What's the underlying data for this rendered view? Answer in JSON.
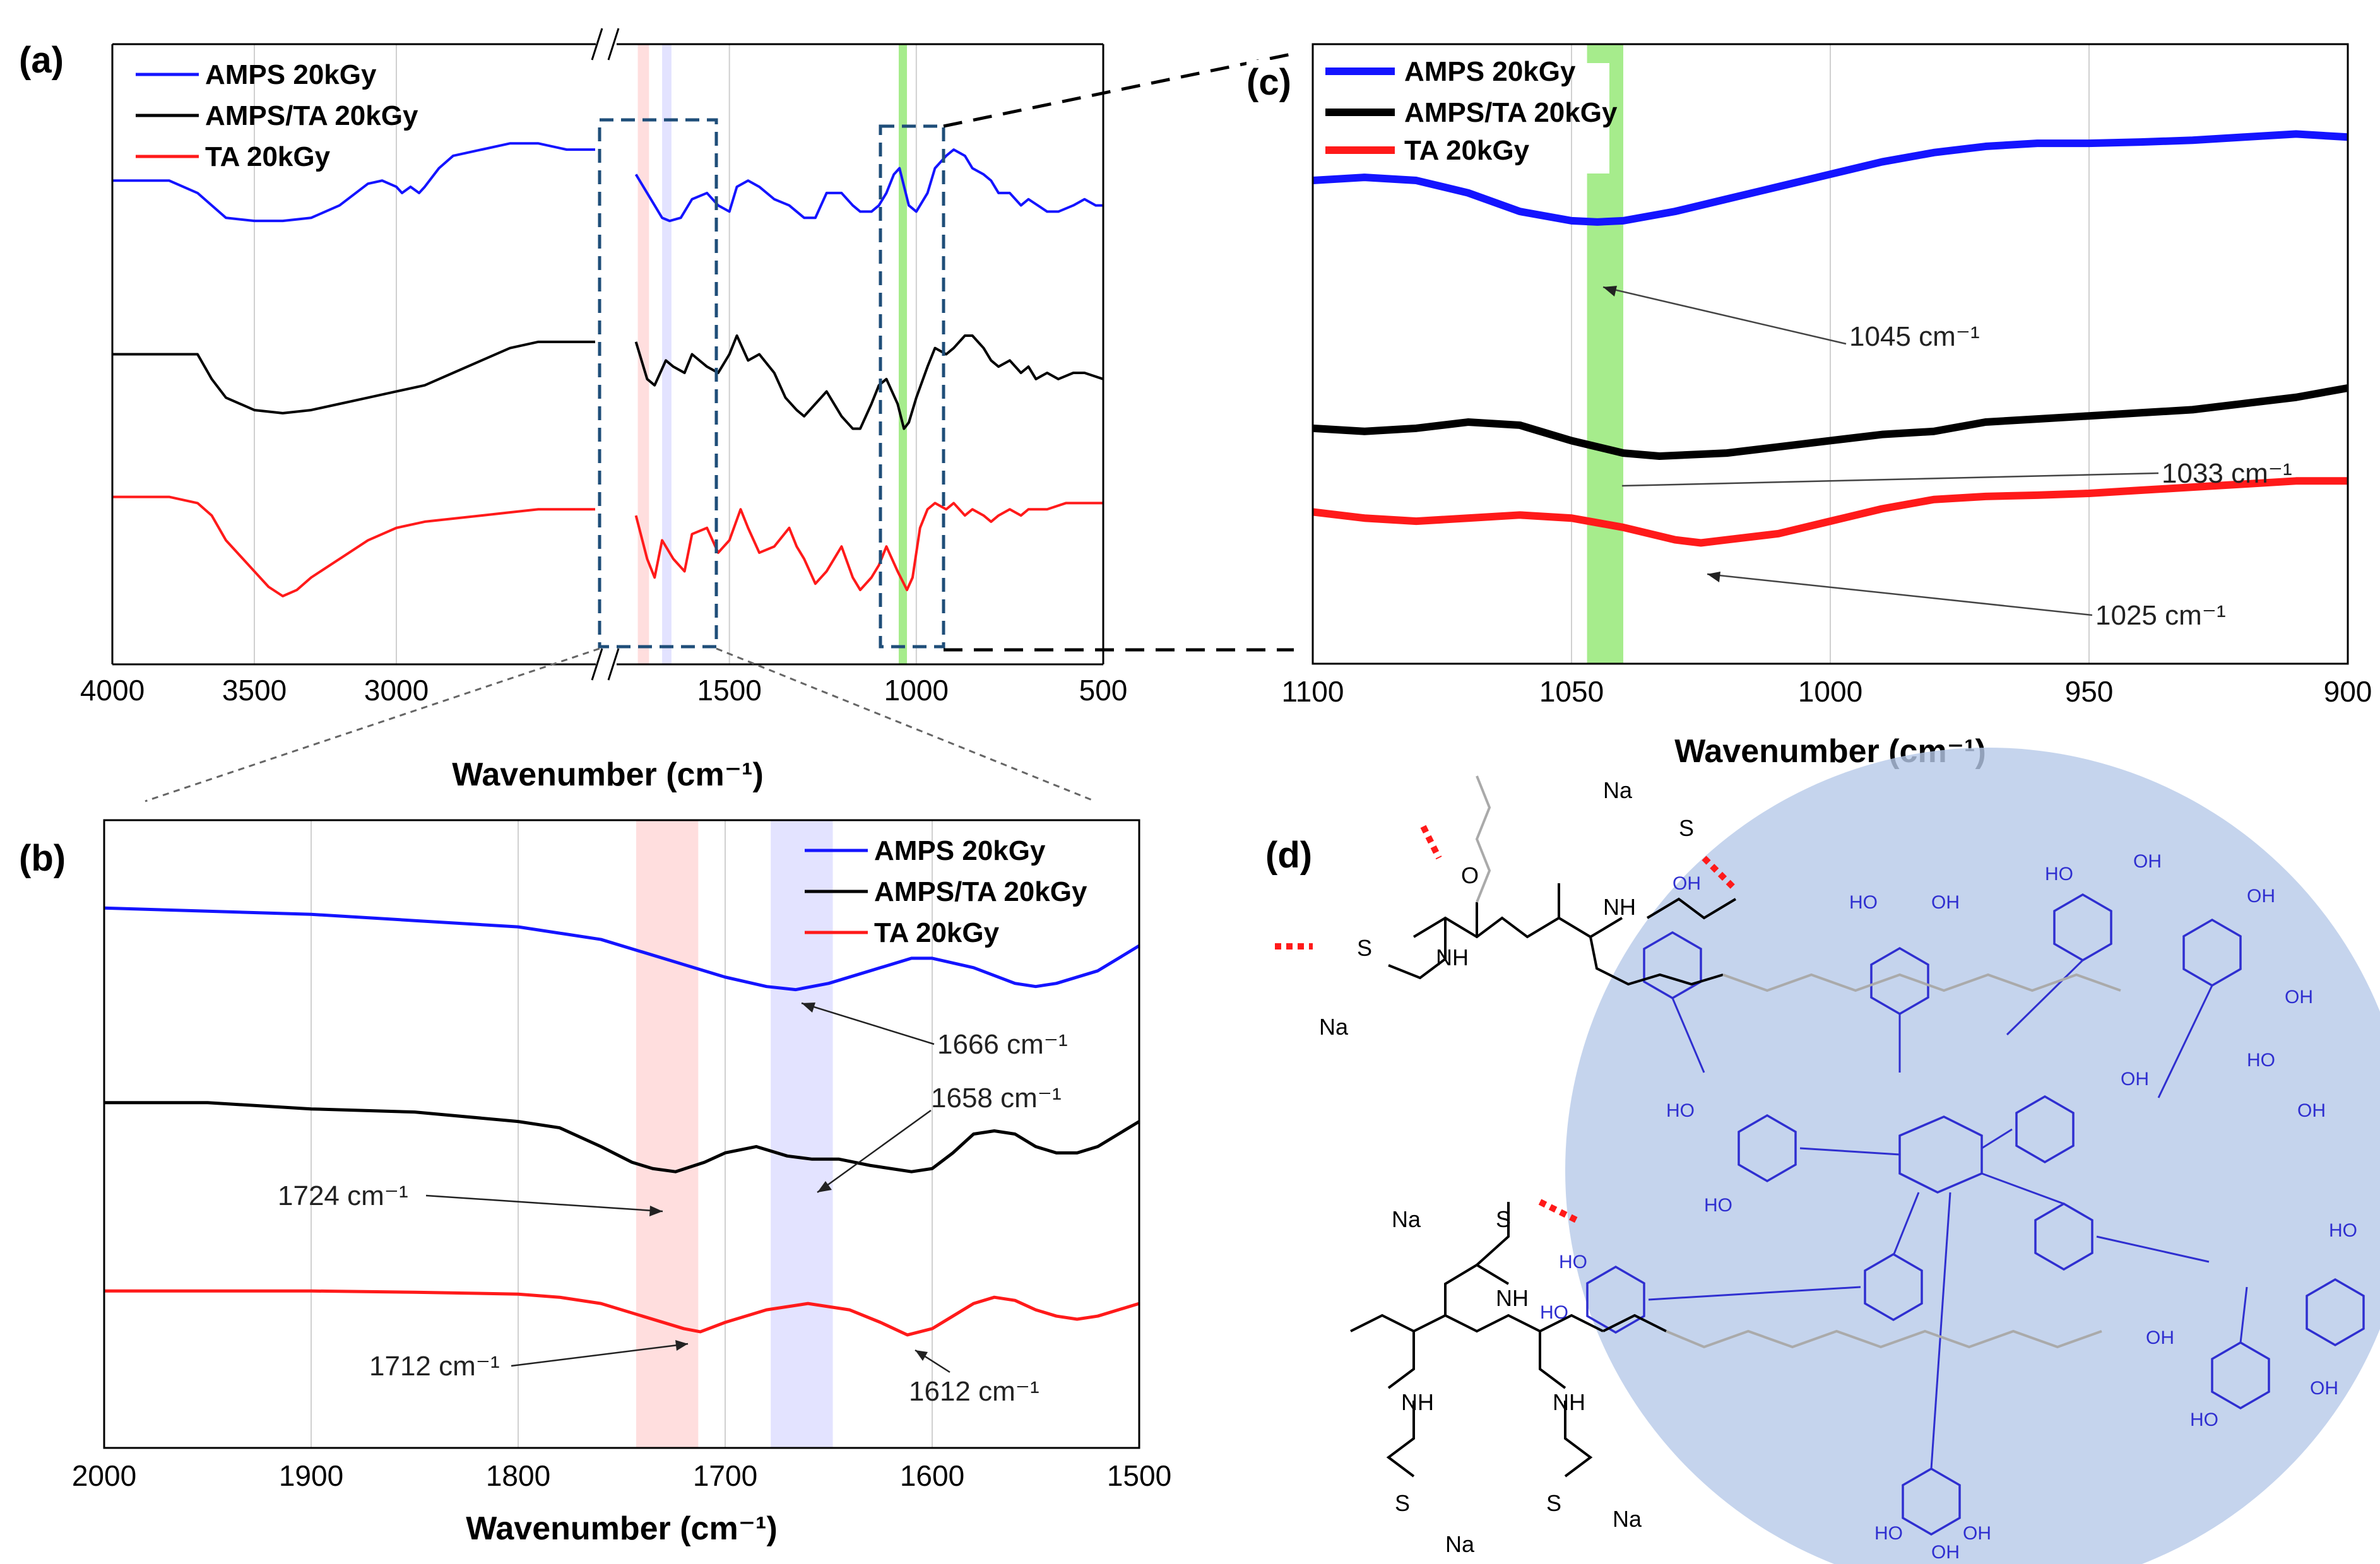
{
  "colors": {
    "amps": "#1414ff",
    "amps_ta": "#000000",
    "ta": "#ff1a1a",
    "band_red": "#ffd6d6",
    "band_blue": "#dcdcff",
    "band_green": "#a6ec8c",
    "zoom_box": "#1f4e79",
    "circle": "#b7c9e8",
    "ta_structure": "#2f2fd0"
  },
  "panels": {
    "a": "(a)",
    "b": "(b)",
    "c": "(c)",
    "d": "(d)"
  },
  "legend": {
    "amps": "AMPS 20kGy",
    "amps_ta": "AMPS/TA 20kGy",
    "ta": "TA 20kGy"
  },
  "chart_data": [
    {
      "panel": "a",
      "type": "line",
      "xlabel": "Wavenumber (cm⁻¹)",
      "xlim": [
        4000,
        500
      ],
      "x_axis_break": [
        2200,
        1800
      ],
      "xticks": [
        "4000",
        "3500",
        "3000",
        "1500",
        "1000",
        "500"
      ],
      "legend_position": "top-left",
      "grid": "vertical",
      "series": [
        {
          "name": "AMPS 20kGy",
          "color": "#1414ff",
          "x": [
            4000,
            3900,
            3800,
            3700,
            3600,
            3500,
            3400,
            3300,
            3200,
            3100,
            3050,
            3000,
            2980,
            2950,
            2920,
            2900,
            2850,
            2800,
            2700,
            2600,
            2500,
            2400,
            2300,
            1750,
            1720,
            1700,
            1680,
            1660,
            1630,
            1600,
            1560,
            1530,
            1500,
            1480,
            1450,
            1420,
            1380,
            1340,
            1300,
            1270,
            1240,
            1200,
            1170,
            1150,
            1120,
            1100,
            1080,
            1060,
            1045,
            1020,
            1000,
            970,
            950,
            920,
            900,
            870,
            850,
            820,
            800,
            780,
            750,
            720,
            700,
            650,
            620,
            580,
            550,
            520,
            500
          ],
          "y": [
            0.78,
            0.78,
            0.78,
            0.76,
            0.72,
            0.715,
            0.715,
            0.72,
            0.74,
            0.775,
            0.78,
            0.77,
            0.76,
            0.77,
            0.76,
            0.77,
            0.8,
            0.82,
            0.83,
            0.84,
            0.84,
            0.83,
            0.83,
            0.79,
            0.76,
            0.74,
            0.72,
            0.715,
            0.72,
            0.75,
            0.76,
            0.74,
            0.73,
            0.77,
            0.78,
            0.77,
            0.75,
            0.74,
            0.72,
            0.72,
            0.76,
            0.76,
            0.74,
            0.73,
            0.73,
            0.74,
            0.76,
            0.79,
            0.8,
            0.74,
            0.73,
            0.76,
            0.8,
            0.82,
            0.83,
            0.82,
            0.8,
            0.79,
            0.78,
            0.76,
            0.76,
            0.74,
            0.75,
            0.73,
            0.73,
            0.74,
            0.75,
            0.74,
            0.74
          ]
        },
        {
          "name": "AMPS/TA 20kGy",
          "color": "#000000",
          "x": [
            4000,
            3900,
            3800,
            3700,
            3650,
            3600,
            3500,
            3400,
            3300,
            3200,
            3100,
            3000,
            2900,
            2800,
            2700,
            2600,
            2500,
            2400,
            2300,
            1750,
            1720,
            1700,
            1670,
            1650,
            1620,
            1600,
            1560,
            1530,
            1500,
            1480,
            1450,
            1420,
            1380,
            1350,
            1320,
            1300,
            1270,
            1240,
            1200,
            1170,
            1150,
            1120,
            1100,
            1080,
            1050,
            1033,
            1020,
            1000,
            970,
            950,
            920,
            900,
            870,
            850,
            820,
            800,
            780,
            750,
            720,
            700,
            680,
            650,
            620,
            580,
            550,
            500
          ],
          "y": [
            0.5,
            0.5,
            0.5,
            0.5,
            0.46,
            0.43,
            0.41,
            0.405,
            0.41,
            0.42,
            0.43,
            0.44,
            0.45,
            0.47,
            0.49,
            0.51,
            0.52,
            0.52,
            0.52,
            0.52,
            0.46,
            0.45,
            0.49,
            0.48,
            0.47,
            0.5,
            0.48,
            0.47,
            0.5,
            0.53,
            0.49,
            0.5,
            0.47,
            0.43,
            0.41,
            0.4,
            0.42,
            0.44,
            0.4,
            0.38,
            0.38,
            0.42,
            0.45,
            0.46,
            0.42,
            0.38,
            0.39,
            0.43,
            0.48,
            0.51,
            0.5,
            0.51,
            0.53,
            0.53,
            0.51,
            0.49,
            0.48,
            0.49,
            0.47,
            0.48,
            0.46,
            0.47,
            0.46,
            0.47,
            0.47,
            0.46
          ]
        },
        {
          "name": "TA 20kGy",
          "color": "#ff1a1a",
          "x": [
            4000,
            3900,
            3800,
            3700,
            3650,
            3600,
            3500,
            3450,
            3400,
            3350,
            3300,
            3200,
            3100,
            3000,
            2900,
            2800,
            2700,
            2600,
            2500,
            2400,
            2300,
            1750,
            1720,
            1700,
            1680,
            1650,
            1620,
            1600,
            1560,
            1530,
            1500,
            1470,
            1450,
            1420,
            1380,
            1340,
            1320,
            1300,
            1270,
            1240,
            1200,
            1170,
            1150,
            1120,
            1100,
            1080,
            1050,
            1025,
            1010,
            990,
            970,
            950,
            920,
            900,
            870,
            850,
            820,
            800,
            780,
            750,
            720,
            700,
            650,
            600,
            550,
            500
          ],
          "y": [
            0.27,
            0.27,
            0.27,
            0.26,
            0.24,
            0.2,
            0.15,
            0.125,
            0.11,
            0.12,
            0.14,
            0.17,
            0.2,
            0.22,
            0.23,
            0.235,
            0.24,
            0.245,
            0.25,
            0.25,
            0.25,
            0.24,
            0.17,
            0.14,
            0.2,
            0.17,
            0.15,
            0.21,
            0.22,
            0.18,
            0.2,
            0.25,
            0.22,
            0.18,
            0.19,
            0.22,
            0.19,
            0.17,
            0.13,
            0.15,
            0.19,
            0.14,
            0.12,
            0.14,
            0.16,
            0.19,
            0.15,
            0.12,
            0.14,
            0.22,
            0.25,
            0.26,
            0.25,
            0.26,
            0.24,
            0.25,
            0.24,
            0.23,
            0.24,
            0.25,
            0.24,
            0.25,
            0.25,
            0.26,
            0.26,
            0.26
          ]
        }
      ]
    },
    {
      "panel": "b",
      "type": "line",
      "xlabel": "Wavenumber (cm⁻¹)",
      "xlim": [
        2000,
        1500
      ],
      "xticks": [
        "2000",
        "1900",
        "1800",
        "1700",
        "1600",
        "1500"
      ],
      "legend_position": "top-right",
      "grid": "vertical",
      "shaded_bands": [
        [
          1743,
          1713
        ],
        [
          1678,
          1648
        ]
      ],
      "series": [
        {
          "name": "AMPS 20kGy",
          "color": "#1414ff",
          "x": [
            2000,
            1950,
            1900,
            1850,
            1800,
            1780,
            1760,
            1740,
            1720,
            1700,
            1680,
            1666,
            1650,
            1630,
            1610,
            1600,
            1580,
            1560,
            1550,
            1540,
            1520,
            1500
          ],
          "y": [
            0.86,
            0.855,
            0.85,
            0.84,
            0.83,
            0.82,
            0.81,
            0.79,
            0.77,
            0.75,
            0.735,
            0.73,
            0.74,
            0.76,
            0.78,
            0.78,
            0.765,
            0.74,
            0.735,
            0.74,
            0.76,
            0.8
          ]
        },
        {
          "name": "AMPS/TA 20kGy",
          "color": "#000000",
          "x": [
            2000,
            1950,
            1900,
            1850,
            1800,
            1780,
            1760,
            1745,
            1735,
            1724,
            1710,
            1700,
            1685,
            1670,
            1658,
            1645,
            1630,
            1610,
            1600,
            1590,
            1580,
            1570,
            1560,
            1550,
            1540,
            1530,
            1520,
            1500
          ],
          "y": [
            0.55,
            0.55,
            0.54,
            0.535,
            0.52,
            0.51,
            0.48,
            0.455,
            0.445,
            0.44,
            0.455,
            0.47,
            0.48,
            0.465,
            0.46,
            0.46,
            0.45,
            0.44,
            0.445,
            0.47,
            0.5,
            0.505,
            0.5,
            0.48,
            0.47,
            0.47,
            0.48,
            0.52
          ]
        },
        {
          "name": "TA 20kGy",
          "color": "#ff1a1a",
          "x": [
            2000,
            1950,
            1900,
            1850,
            1800,
            1780,
            1760,
            1740,
            1720,
            1712,
            1700,
            1680,
            1660,
            1640,
            1625,
            1612,
            1600,
            1590,
            1580,
            1570,
            1560,
            1550,
            1540,
            1530,
            1520,
            1500
          ],
          "y": [
            0.25,
            0.25,
            0.25,
            0.248,
            0.245,
            0.24,
            0.23,
            0.21,
            0.19,
            0.185,
            0.2,
            0.22,
            0.23,
            0.22,
            0.2,
            0.18,
            0.19,
            0.21,
            0.23,
            0.24,
            0.235,
            0.22,
            0.21,
            0.205,
            0.21,
            0.23
          ]
        }
      ],
      "annotations": [
        "1666 cm⁻¹",
        "1658 cm⁻¹",
        "1724 cm⁻¹",
        "1712 cm⁻¹",
        "1612 cm⁻¹"
      ]
    },
    {
      "panel": "c",
      "type": "line",
      "xlabel": "Wavenumber (cm⁻¹)",
      "xlim": [
        1100,
        900
      ],
      "xticks": [
        "1100",
        "1050",
        "1000",
        "950",
        "900"
      ],
      "legend_position": "top-left",
      "grid": "vertical",
      "shaded_bands": [
        [
          1047,
          1040
        ]
      ],
      "series": [
        {
          "name": "AMPS 20kGy",
          "color": "#1414ff",
          "x": [
            1100,
            1090,
            1080,
            1070,
            1060,
            1050,
            1045,
            1040,
            1030,
            1020,
            1010,
            1000,
            990,
            980,
            970,
            960,
            950,
            940,
            930,
            920,
            910,
            900
          ],
          "y": [
            0.78,
            0.785,
            0.78,
            0.76,
            0.73,
            0.715,
            0.713,
            0.715,
            0.73,
            0.75,
            0.77,
            0.79,
            0.81,
            0.825,
            0.835,
            0.84,
            0.84,
            0.842,
            0.845,
            0.85,
            0.855,
            0.85
          ]
        },
        {
          "name": "AMPS/TA 20kGy",
          "color": "#000000",
          "x": [
            1100,
            1090,
            1080,
            1070,
            1060,
            1050,
            1040,
            1033,
            1020,
            1010,
            1000,
            990,
            980,
            970,
            960,
            950,
            940,
            930,
            920,
            910,
            900
          ],
          "y": [
            0.38,
            0.375,
            0.38,
            0.39,
            0.385,
            0.36,
            0.34,
            0.335,
            0.34,
            0.35,
            0.36,
            0.37,
            0.375,
            0.39,
            0.395,
            0.4,
            0.405,
            0.41,
            0.42,
            0.43,
            0.445
          ]
        },
        {
          "name": "TA 20kGy",
          "color": "#ff1a1a",
          "x": [
            1100,
            1090,
            1080,
            1070,
            1060,
            1050,
            1040,
            1030,
            1025,
            1020,
            1010,
            1000,
            990,
            980,
            970,
            960,
            950,
            940,
            930,
            920,
            910,
            900
          ],
          "y": [
            0.245,
            0.235,
            0.23,
            0.235,
            0.24,
            0.235,
            0.22,
            0.2,
            0.195,
            0.2,
            0.21,
            0.23,
            0.25,
            0.265,
            0.27,
            0.272,
            0.275,
            0.28,
            0.285,
            0.29,
            0.295,
            0.295
          ]
        }
      ],
      "annotations": [
        "1045 cm⁻¹",
        "1033 cm⁻¹",
        "1025 cm⁻¹"
      ]
    }
  ],
  "structure_labels": {
    "na": "Na",
    "nh": "NH",
    "o": "O",
    "s": "S",
    "oh": "OH",
    "ho": "HO"
  }
}
